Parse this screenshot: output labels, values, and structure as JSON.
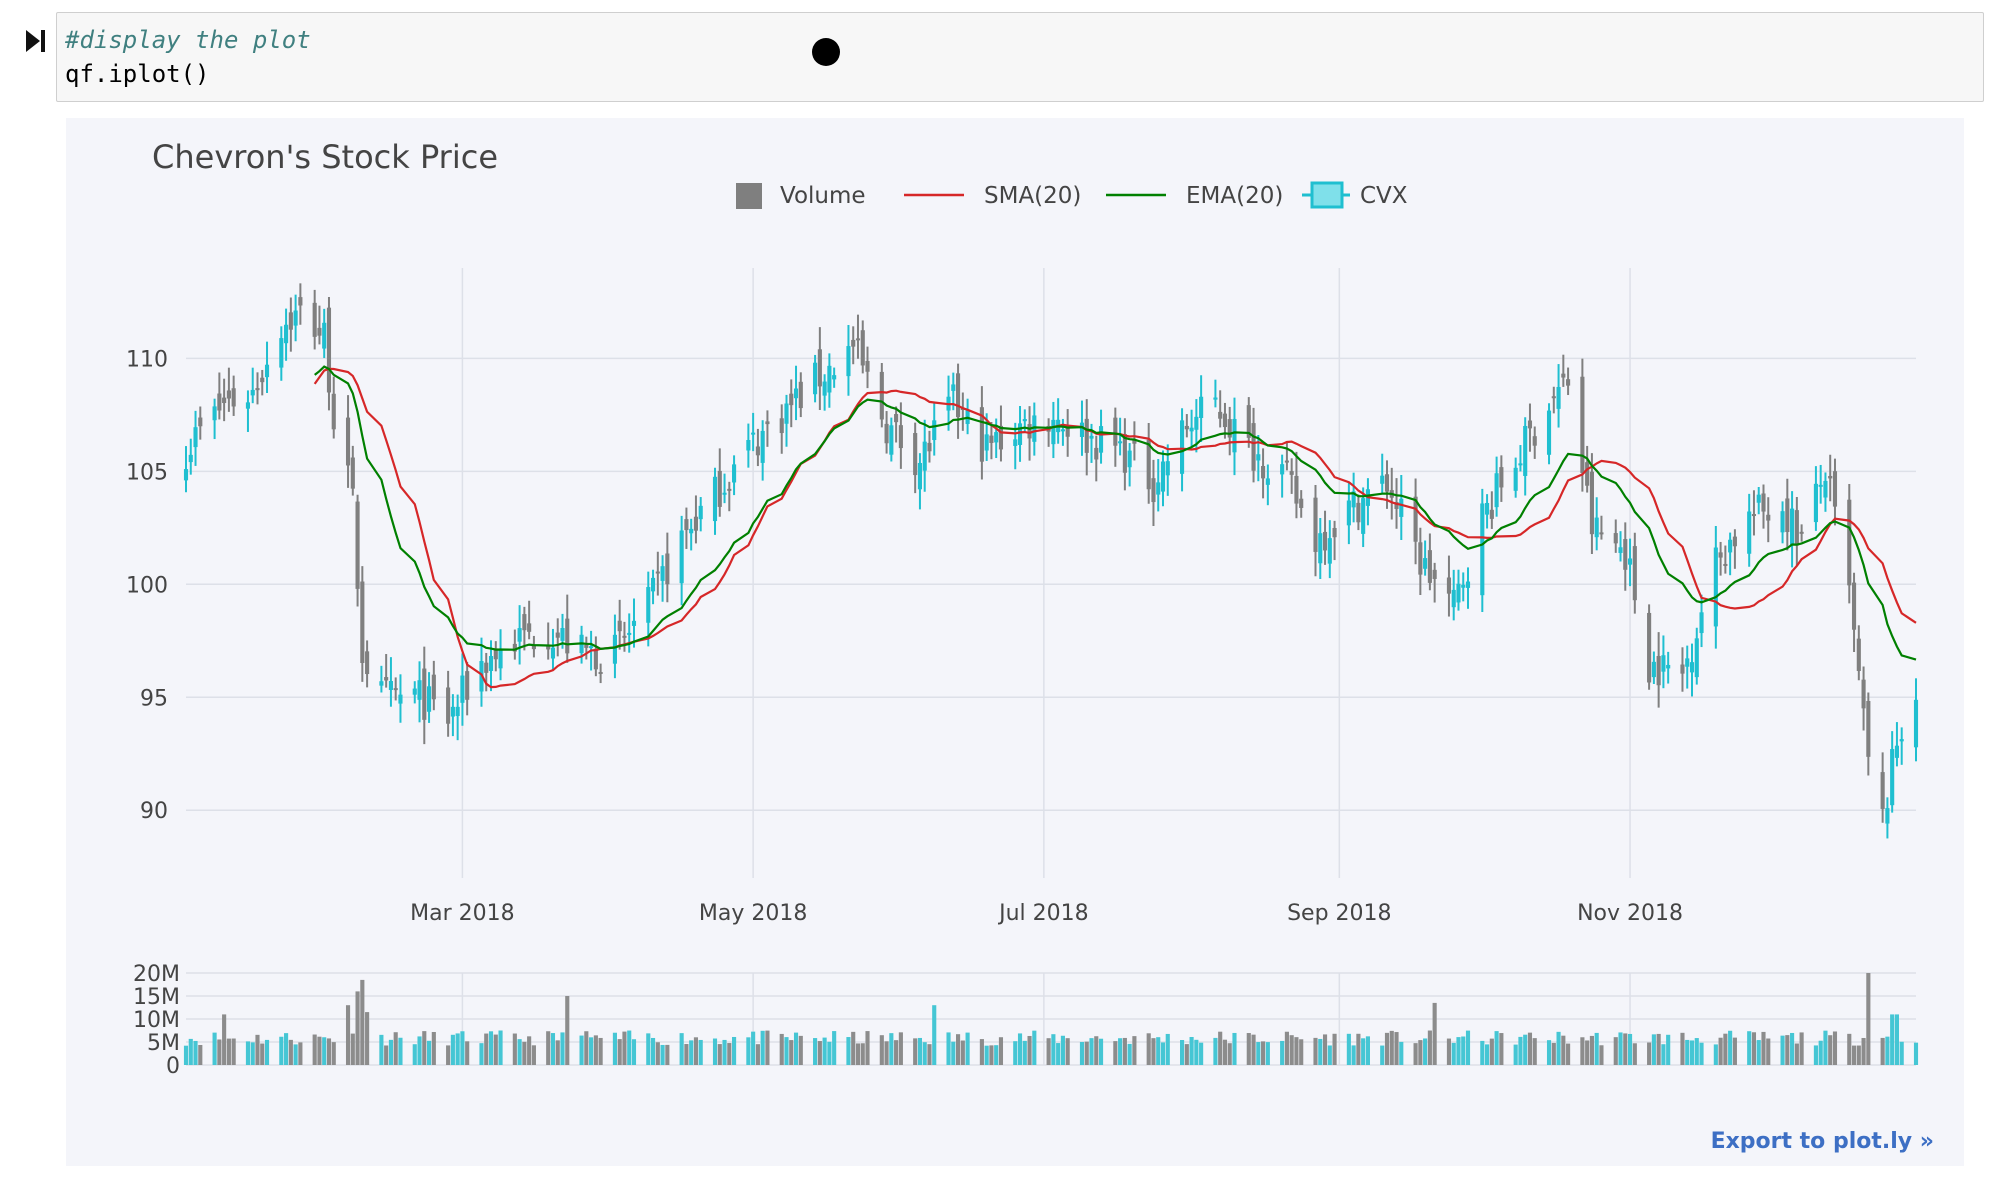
{
  "notebook": {
    "code_comment": "#display the plot",
    "code_line": "qf.iplot()",
    "export_link": "Export to plot.ly »"
  },
  "colors": {
    "increasing": "#1fbfd0",
    "decreasing": "#7f7f7f",
    "sma": "#d62728",
    "ema": "#008000",
    "grid": "#dde0e8",
    "text": "#444444"
  },
  "chart_data": {
    "type": "candlestick",
    "title": "Chevron's Stock Price",
    "legend": [
      {
        "name": "Volume",
        "kind": "volume"
      },
      {
        "name": "SMA(20)",
        "kind": "sma"
      },
      {
        "name": "EMA(20)",
        "kind": "ema"
      },
      {
        "name": "CVX",
        "kind": "candle"
      }
    ],
    "x_range": [
      "2018-01-02",
      "2018-12-31"
    ],
    "price_axis": {
      "ylim": [
        87,
        114
      ],
      "ticks": [
        90,
        95,
        100,
        105,
        110
      ]
    },
    "volume_axis": {
      "ylim": [
        0,
        20000000
      ],
      "ticks": [
        0,
        5000000,
        10000000,
        15000000,
        20000000
      ],
      "tick_labels": [
        "0",
        "5M",
        "10M",
        "15M",
        "20M"
      ]
    },
    "x_ticks": [
      {
        "date": "2018-03-01",
        "label": "Mar 2018"
      },
      {
        "date": "2018-05-01",
        "label": "May 2018"
      },
      {
        "date": "2018-07-01",
        "label": "Jul 2018"
      },
      {
        "date": "2018-09-01",
        "label": "Sep 2018"
      },
      {
        "date": "2018-11-01",
        "label": "Nov 2018"
      }
    ],
    "close_anchors": [
      [
        "2018-01-02",
        106.0
      ],
      [
        "2018-01-10",
        108.0
      ],
      [
        "2018-01-16",
        108.5
      ],
      [
        "2018-01-22",
        111.5
      ],
      [
        "2018-01-26",
        112.0
      ],
      [
        "2018-01-31",
        111.0
      ],
      [
        "2018-02-02",
        107.5
      ],
      [
        "2018-02-06",
        103.5
      ],
      [
        "2018-02-08",
        97.0
      ],
      [
        "2018-02-12",
        95.0
      ],
      [
        "2018-02-20",
        95.0
      ],
      [
        "2018-02-26",
        94.0
      ],
      [
        "2018-03-05",
        96.5
      ],
      [
        "2018-03-12",
        97.5
      ],
      [
        "2018-03-19",
        98.0
      ],
      [
        "2018-03-26",
        97.0
      ],
      [
        "2018-04-02",
        97.0
      ],
      [
        "2018-04-09",
        99.0
      ],
      [
        "2018-04-16",
        102.0
      ],
      [
        "2018-04-23",
        104.0
      ],
      [
        "2018-04-30",
        106.0
      ],
      [
        "2018-05-07",
        107.5
      ],
      [
        "2018-05-14",
        109.0
      ],
      [
        "2018-05-22",
        110.5
      ],
      [
        "2018-05-29",
        107.0
      ],
      [
        "2018-06-05",
        105.5
      ],
      [
        "2018-06-12",
        108.0
      ],
      [
        "2018-06-19",
        106.0
      ],
      [
        "2018-06-26",
        107.0
      ],
      [
        "2018-07-03",
        107.5
      ],
      [
        "2018-07-10",
        106.5
      ],
      [
        "2018-07-17",
        106.0
      ],
      [
        "2018-07-24",
        104.5
      ],
      [
        "2018-07-31",
        107.0
      ],
      [
        "2018-08-06",
        108.0
      ],
      [
        "2018-08-13",
        106.0
      ],
      [
        "2018-08-20",
        105.0
      ],
      [
        "2018-08-27",
        102.0
      ],
      [
        "2018-09-04",
        103.5
      ],
      [
        "2018-09-11",
        104.5
      ],
      [
        "2018-09-18",
        101.0
      ],
      [
        "2018-09-25",
        99.0
      ],
      [
        "2018-10-01",
        103.0
      ],
      [
        "2018-10-08",
        105.5
      ],
      [
        "2018-10-15",
        108.0
      ],
      [
        "2018-10-19",
        109.0
      ],
      [
        "2018-10-24",
        102.5
      ],
      [
        "2018-10-31",
        101.5
      ],
      [
        "2018-11-05",
        96.5
      ],
      [
        "2018-11-12",
        96.0
      ],
      [
        "2018-11-19",
        101.0
      ],
      [
        "2018-11-26",
        103.0
      ],
      [
        "2018-12-03",
        103.5
      ],
      [
        "2018-12-07",
        102.0
      ],
      [
        "2018-12-12",
        105.0
      ],
      [
        "2018-12-17",
        99.5
      ],
      [
        "2018-12-21",
        92.0
      ],
      [
        "2018-12-24",
        89.5
      ],
      [
        "2018-12-27",
        93.0
      ],
      [
        "2018-12-31",
        95.5
      ]
    ],
    "ohlc_generation": {
      "seed": 7,
      "daily_noise": 0.9,
      "wick_range": [
        0.3,
        1.6
      ]
    },
    "volume_generation": {
      "seed": 11,
      "base": 6000000,
      "spread": [
        0.7,
        1.25
      ]
    },
    "volume_spikes": [
      [
        "2018-01-10",
        11000000
      ],
      [
        "2018-02-05",
        13000000
      ],
      [
        "2018-02-07",
        16000000
      ],
      [
        "2018-02-08",
        18500000
      ],
      [
        "2018-02-09",
        11500000
      ],
      [
        "2018-03-23",
        15000000
      ],
      [
        "2018-06-08",
        13000000
      ],
      [
        "2018-09-21",
        13500000
      ],
      [
        "2018-12-21",
        20000000
      ],
      [
        "2018-12-26",
        11000000
      ],
      [
        "2018-12-27",
        11000000
      ]
    ]
  }
}
